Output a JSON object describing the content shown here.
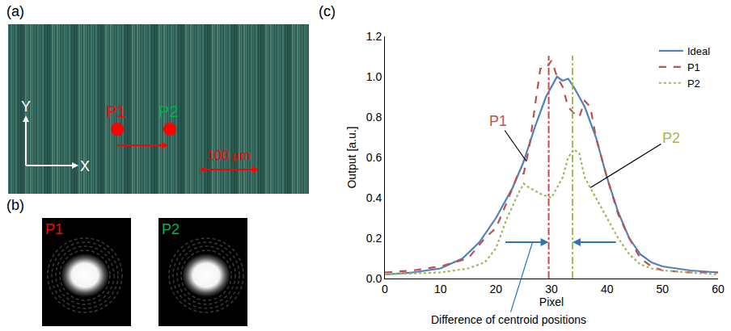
{
  "panels": {
    "a": {
      "label": "(a)",
      "points": [
        {
          "name": "P1",
          "color": "#ff0000"
        },
        {
          "name": "P2",
          "color": "#00b050"
        }
      ],
      "axes": {
        "x": "X",
        "y": "Y"
      },
      "scale_bar": "100 μm"
    },
    "b": {
      "label": "(b)",
      "images": [
        {
          "name": "P1",
          "color": "#ff0000"
        },
        {
          "name": "P2",
          "color": "#00b050"
        }
      ]
    },
    "c": {
      "label": "(c)"
    }
  },
  "chart_data": {
    "type": "line",
    "x_label": "Pixel",
    "y_label": "Output [a.u.]",
    "xlim": [
      0,
      60
    ],
    "xticks": [
      0,
      10,
      20,
      30,
      40,
      50,
      60
    ],
    "ylim": [
      0,
      1.2
    ],
    "yticks": [
      {
        "value": 0,
        "label": "0.0"
      },
      0.2,
      0.4,
      0.6,
      0.8,
      {
        "value": 1,
        "label": "1.0"
      },
      1.2
    ],
    "grid": false,
    "legend": "upper right",
    "series": [
      {
        "name": "Ideal",
        "color": "#4f81bd",
        "line_style": "solid",
        "x": [
          0,
          5,
          10,
          14,
          17,
          20,
          23,
          25,
          27,
          29,
          31,
          32,
          33,
          34,
          36,
          38,
          40,
          42,
          44,
          46,
          48,
          50,
          55,
          60
        ],
        "values": [
          0.02,
          0.03,
          0.05,
          0.1,
          0.18,
          0.3,
          0.45,
          0.58,
          0.75,
          0.9,
          1.0,
          0.98,
          0.99,
          0.95,
          0.85,
          0.7,
          0.5,
          0.33,
          0.2,
          0.12,
          0.08,
          0.06,
          0.04,
          0.03
        ]
      },
      {
        "name": "P1",
        "color": "#c0504d",
        "line_style": "dashed",
        "centroid": 29.5,
        "x": [
          0,
          5,
          10,
          15,
          18,
          20,
          22,
          24,
          25,
          26,
          27,
          28,
          29,
          30,
          31,
          32,
          33,
          34,
          35,
          36,
          37,
          38,
          40,
          42,
          44,
          46,
          48,
          50,
          55,
          60
        ],
        "values": [
          0.03,
          0.04,
          0.06,
          0.1,
          0.2,
          0.25,
          0.38,
          0.52,
          0.52,
          0.65,
          0.85,
          1.04,
          1.04,
          1.08,
          1.0,
          0.95,
          0.85,
          0.82,
          0.8,
          0.88,
          0.85,
          0.7,
          0.5,
          0.32,
          0.2,
          0.1,
          0.06,
          0.04,
          0.03,
          0.03
        ]
      },
      {
        "name": "P2",
        "color": "#9bbb59",
        "line_style": "dotted",
        "centroid": 33.8,
        "x": [
          0,
          10,
          15,
          18,
          20,
          22,
          24,
          25,
          26,
          28,
          30,
          32,
          33,
          34,
          35,
          36,
          38,
          40,
          42,
          44,
          46,
          48,
          50,
          55,
          60
        ],
        "values": [
          0.02,
          0.03,
          0.05,
          0.08,
          0.15,
          0.3,
          0.42,
          0.47,
          0.45,
          0.42,
          0.4,
          0.5,
          0.6,
          0.64,
          0.62,
          0.5,
          0.4,
          0.3,
          0.2,
          0.12,
          0.07,
          0.05,
          0.04,
          0.03,
          0.02
        ]
      }
    ],
    "annotations": [
      {
        "text": "P1",
        "series": "P1",
        "x": 25.5,
        "y": 0.58
      },
      {
        "text": "P2",
        "series": "P2",
        "x": 37,
        "y": 0.45
      },
      {
        "text": "Difference of centroid positions"
      }
    ]
  }
}
